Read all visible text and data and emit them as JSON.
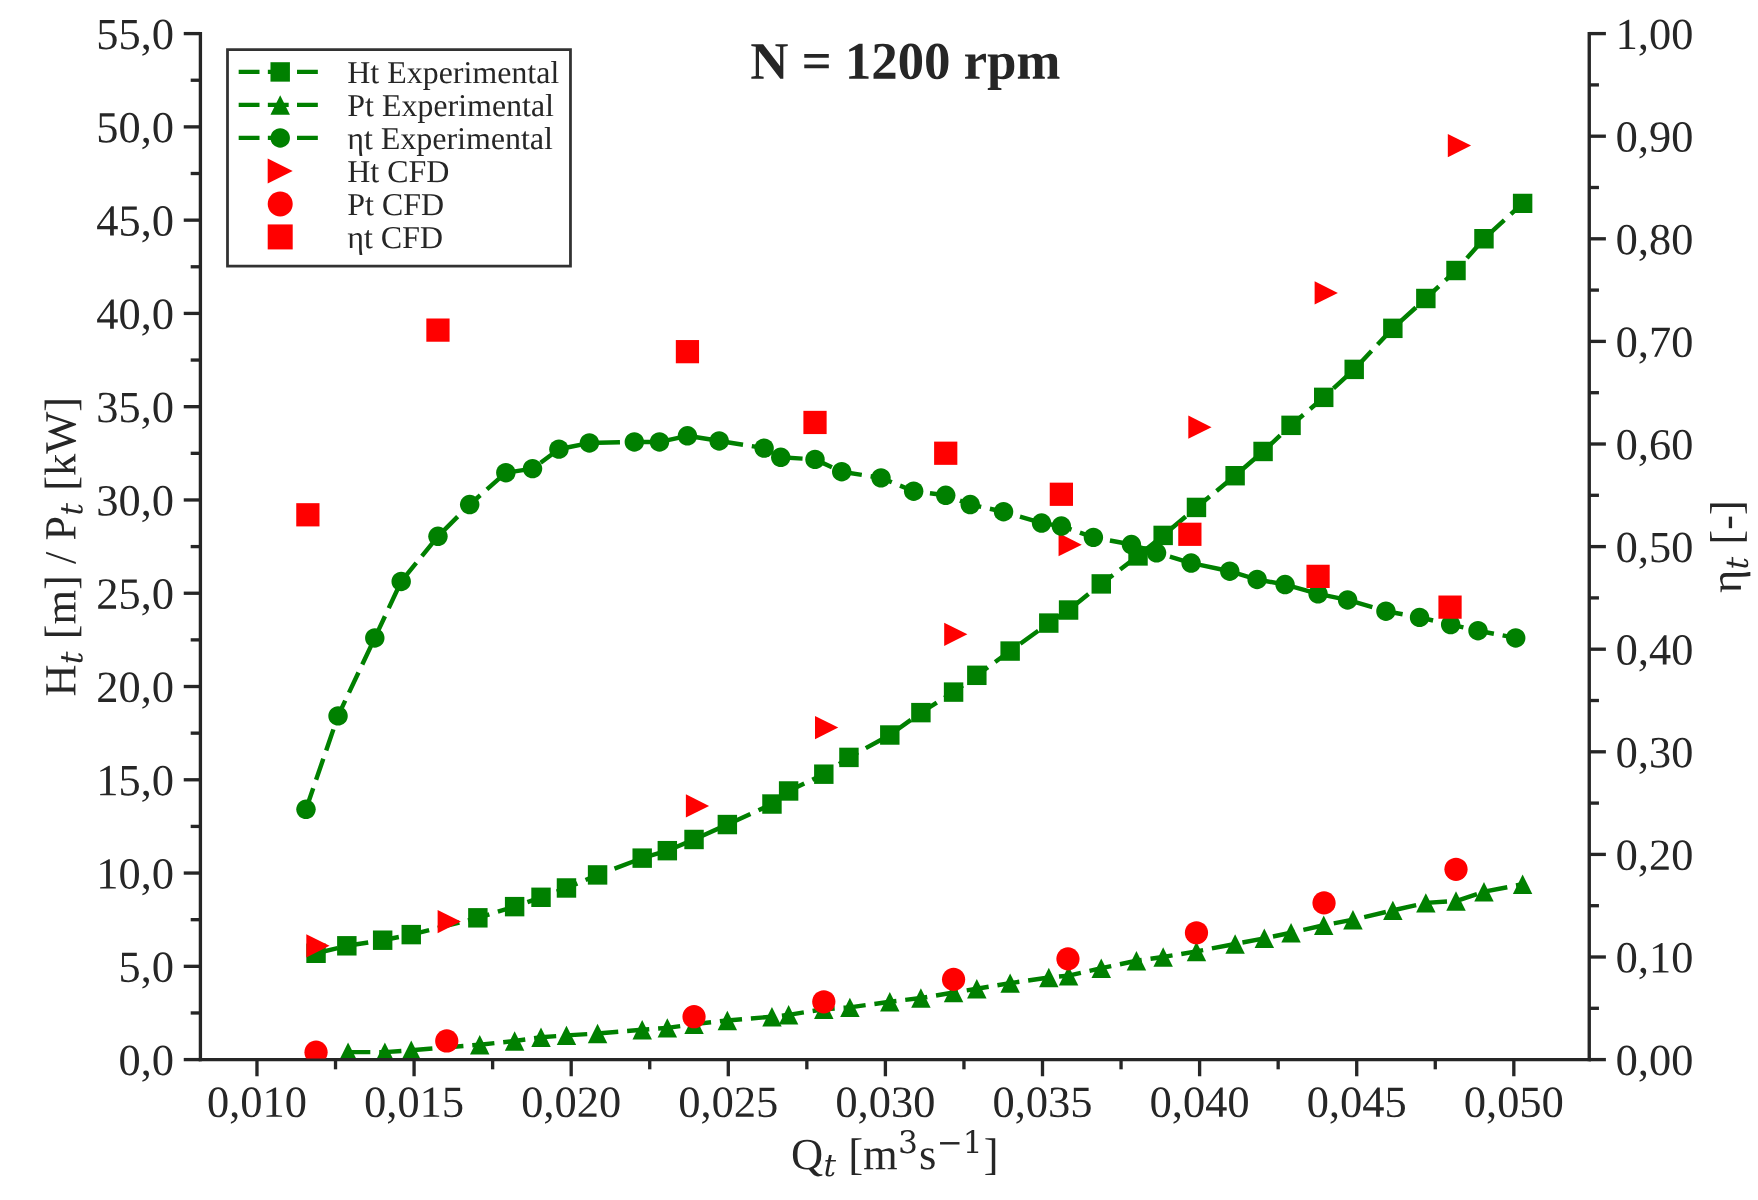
{
  "chart_data": {
    "type": "line",
    "title": "N = 1200 rpm",
    "xlabel": "Q$_{t}$ [m$^{3}$s$^{−1}$]",
    "ylabel": "H$_{t}$ [m] / P$_{t}$ [kW]",
    "y2label": "η$_{t}$ [-]",
    "xlim": [
      0.0082,
      0.0524
    ],
    "ylim": [
      0,
      55
    ],
    "y2lim": [
      0,
      1
    ],
    "xticks": [
      {
        "value": 0.01,
        "label": "0,010"
      },
      {
        "value": 0.015,
        "label": "0,015"
      },
      {
        "value": 0.02,
        "label": "0,020"
      },
      {
        "value": 0.025,
        "label": "0,025"
      },
      {
        "value": 0.03,
        "label": "0,030"
      },
      {
        "value": 0.035,
        "label": "0,035"
      },
      {
        "value": 0.04,
        "label": "0,040"
      },
      {
        "value": 0.045,
        "label": "0,045"
      },
      {
        "value": 0.05,
        "label": "0,050"
      }
    ],
    "yticks": [
      {
        "value": 0,
        "label": "0,0"
      },
      {
        "value": 5,
        "label": "5,0"
      },
      {
        "value": 10,
        "label": "10,0"
      },
      {
        "value": 15,
        "label": "15,0"
      },
      {
        "value": 20,
        "label": "20,0"
      },
      {
        "value": 25,
        "label": "25,0"
      },
      {
        "value": 30,
        "label": "30,0"
      },
      {
        "value": 35,
        "label": "35,0"
      },
      {
        "value": 40,
        "label": "40,0"
      },
      {
        "value": 45,
        "label": "45,0"
      },
      {
        "value": 50,
        "label": "50,0"
      },
      {
        "value": 55,
        "label": "55,0"
      }
    ],
    "y2ticks": [
      {
        "value": 0,
        "label": "0,00"
      },
      {
        "value": 0.1,
        "label": "0,10"
      },
      {
        "value": 0.2,
        "label": "0,20"
      },
      {
        "value": 0.3,
        "label": "0,30"
      },
      {
        "value": 0.4,
        "label": "0,40"
      },
      {
        "value": 0.5,
        "label": "0,50"
      },
      {
        "value": 0.6,
        "label": "0,60"
      },
      {
        "value": 0.7,
        "label": "0,70"
      },
      {
        "value": 0.8,
        "label": "0,80"
      },
      {
        "value": 0.9,
        "label": "0,90"
      },
      {
        "value": 1.0,
        "label": "1,00"
      }
    ],
    "legend": "top left",
    "grid": false,
    "series": [
      {
        "name": "Ht Experimental",
        "marker": "square",
        "line_style": "dashed",
        "color": "#008000",
        "x": [
          0.01188,
          0.01286,
          0.014,
          0.01491,
          0.01703,
          0.0182,
          0.01904,
          0.01985,
          0.02084,
          0.02226,
          0.02306,
          0.02391,
          0.02497,
          0.02639,
          0.02692,
          0.02804,
          0.02884,
          0.03014,
          0.03113,
          0.03217,
          0.03291,
          0.03397,
          0.0352,
          0.03583,
          0.03687,
          0.03804,
          0.03884,
          0.0399,
          0.04113,
          0.04202,
          0.04291,
          0.04395,
          0.04492,
          0.04615,
          0.0472,
          0.04816,
          0.04905,
          0.05028
        ],
        "values": [
          5.7,
          6.1,
          6.4,
          6.7,
          7.6,
          8.2,
          8.7,
          9.2,
          9.9,
          10.8,
          11.2,
          11.8,
          12.6,
          13.7,
          14.4,
          15.3,
          16.2,
          17.4,
          18.6,
          19.7,
          20.6,
          21.9,
          23.4,
          24.1,
          25.5,
          27.0,
          28.1,
          29.6,
          31.3,
          32.6,
          34.0,
          35.5,
          37.0,
          39.2,
          40.8,
          42.3,
          44.0,
          45.9
        ]
      },
      {
        "name": "Pt Experimental",
        "marker": "triangle",
        "line_style": "dashed",
        "color": "#008000",
        "x": [
          0.0129,
          0.01407,
          0.01491,
          0.01709,
          0.0182,
          0.01904,
          0.01985,
          0.02084,
          0.02226,
          0.02306,
          0.02391,
          0.02497,
          0.02639,
          0.02692,
          0.02804,
          0.02887,
          0.03014,
          0.03113,
          0.03217,
          0.03291,
          0.03397,
          0.0352,
          0.03583,
          0.03687,
          0.03799,
          0.03884,
          0.0399,
          0.04113,
          0.04206,
          0.04291,
          0.04395,
          0.04488,
          0.04615,
          0.0472,
          0.04816,
          0.04905,
          0.05028
        ],
        "values": [
          0.4,
          0.4,
          0.5,
          0.8,
          1.0,
          1.2,
          1.3,
          1.4,
          1.6,
          1.7,
          1.9,
          2.1,
          2.3,
          2.4,
          2.7,
          2.8,
          3.1,
          3.3,
          3.6,
          3.8,
          4.1,
          4.4,
          4.5,
          4.9,
          5.3,
          5.5,
          5.8,
          6.2,
          6.5,
          6.8,
          7.2,
          7.5,
          8.0,
          8.4,
          8.5,
          9.0,
          9.4
        ]
      },
      {
        "name": "ηt Experimental",
        "axis": "y2",
        "marker": "circle",
        "line_style": "dashed",
        "color": "#008000",
        "x": [
          0.01156,
          0.01258,
          0.01375,
          0.01459,
          0.01576,
          0.01677,
          0.01792,
          0.01877,
          0.01961,
          0.02058,
          0.02201,
          0.02281,
          0.0237,
          0.02471,
          0.02614,
          0.02667,
          0.02776,
          0.02861,
          0.02986,
          0.0309,
          0.03192,
          0.0327,
          0.03376,
          0.03497,
          0.0356,
          0.03662,
          0.03783,
          0.03863,
          0.03973,
          0.04096,
          0.04183,
          0.04272,
          0.04377,
          0.04471,
          0.04593,
          0.047,
          0.04799,
          0.04886,
          0.05006
        ],
        "values": [
          0.244,
          0.335,
          0.411,
          0.466,
          0.51,
          0.541,
          0.572,
          0.576,
          0.595,
          0.601,
          0.602,
          0.602,
          0.608,
          0.603,
          0.596,
          0.587,
          0.585,
          0.573,
          0.567,
          0.554,
          0.55,
          0.541,
          0.534,
          0.523,
          0.52,
          0.509,
          0.502,
          0.494,
          0.484,
          0.476,
          0.468,
          0.463,
          0.454,
          0.448,
          0.437,
          0.431,
          0.424,
          0.418,
          0.411
        ]
      },
      {
        "name": "Ht CFD",
        "type": "scatter",
        "marker": "triangle",
        "color": "#ff0000",
        "x": [
          0.01194,
          0.01612,
          0.02402,
          0.02813,
          0.03224,
          0.03588,
          0.04001,
          0.04403,
          0.04827
        ],
        "values": [
          6.1,
          7.4,
          13.6,
          17.8,
          22.8,
          27.6,
          33.9,
          41.1,
          49.0
        ]
      },
      {
        "name": "Pt CFD",
        "type": "scatter",
        "marker": "circle",
        "color": "#ff0000",
        "x": [
          0.01188,
          0.01604,
          0.02391,
          0.02804,
          0.03217,
          0.03581,
          0.0399,
          0.04396,
          0.04816
        ],
        "values": [
          0.4,
          1.0,
          2.3,
          3.1,
          4.3,
          5.4,
          6.8,
          8.4,
          10.2
        ]
      },
      {
        "name": "ηt CFD",
        "type": "scatter",
        "axis": "y2",
        "marker": "square",
        "color": "#ff0000",
        "x": [
          0.01162,
          0.01576,
          0.0237,
          0.02776,
          0.03192,
          0.0356,
          0.03969,
          0.04377,
          0.04797
        ],
        "values": [
          0.531,
          0.711,
          0.69,
          0.621,
          0.591,
          0.551,
          0.512,
          0.471,
          0.441
        ]
      }
    ]
  }
}
